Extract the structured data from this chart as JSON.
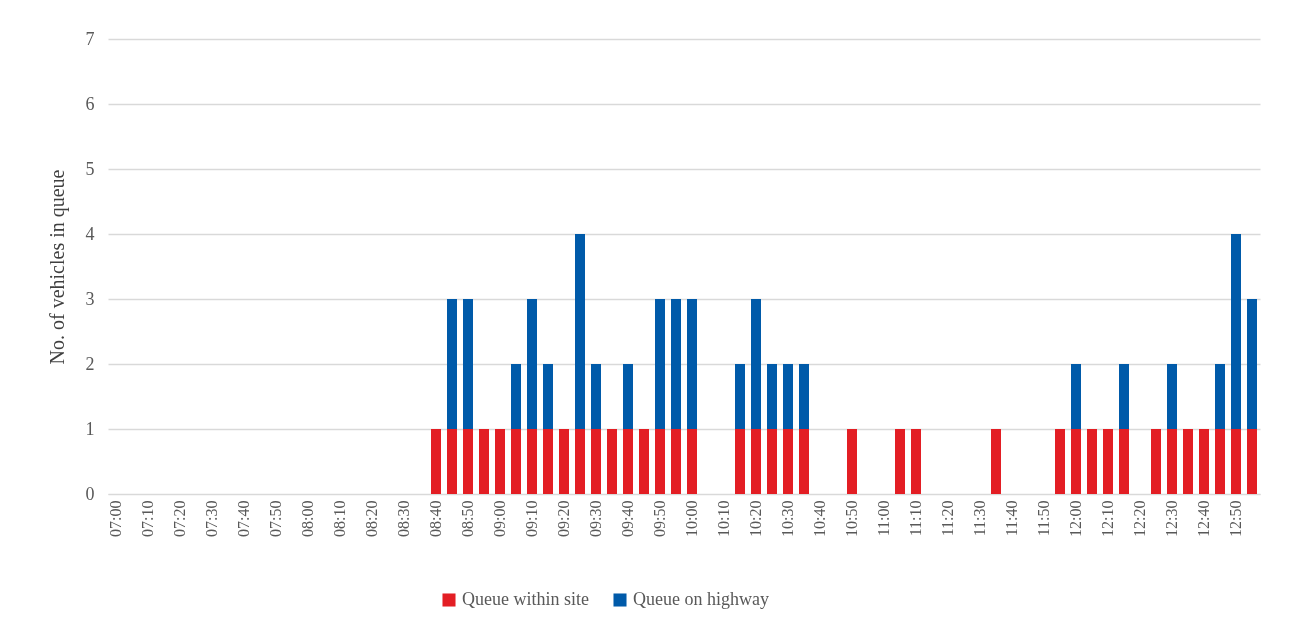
{
  "chart_data": {
    "type": "bar",
    "ylabel": "No. of vehicles in queue",
    "categories": [
      "07:00",
      null,
      "07:10",
      null,
      "07:20",
      null,
      "07:30",
      null,
      "07:40",
      null,
      "07:50",
      null,
      "08:00",
      null,
      "08:10",
      null,
      "08:20",
      null,
      "08:30",
      null,
      "08:40",
      null,
      "08:50",
      null,
      "09:00",
      null,
      "09:10",
      null,
      "09:20",
      null,
      "09:30",
      null,
      "09:40",
      null,
      "09:50",
      null,
      "10:00",
      null,
      "10:10",
      null,
      "10:20",
      null,
      "10:30",
      null,
      "10:40",
      null,
      "10:50",
      null,
      "11:00",
      null,
      "11:10",
      null,
      "11:20",
      null,
      "11:30",
      null,
      "11:40",
      null,
      "11:50",
      null,
      "12:00",
      null,
      "12:10",
      null,
      "12:20",
      null,
      "12:30",
      null,
      "12:40",
      null,
      "12:50",
      null
    ],
    "series": [
      {
        "name": "Queue within site",
        "color": "#e31e24",
        "values": [
          0,
          0,
          0,
          0,
          0,
          0,
          0,
          0,
          0,
          0,
          0,
          0,
          0,
          0,
          0,
          0,
          0,
          0,
          0,
          0,
          1,
          1,
          1,
          1,
          1,
          1,
          1,
          1,
          1,
          1,
          1,
          1,
          1,
          1,
          1,
          1,
          1,
          0,
          0,
          1,
          1,
          1,
          1,
          1,
          0,
          0,
          1,
          0,
          0,
          1,
          1,
          0,
          0,
          0,
          0,
          1,
          0,
          0,
          0,
          1,
          1,
          1,
          1,
          1,
          0,
          1,
          1,
          1,
          1,
          1,
          1,
          1
        ]
      },
      {
        "name": "Queue on highway",
        "color": "#005aa9",
        "values": [
          0,
          0,
          0,
          0,
          0,
          0,
          0,
          0,
          0,
          0,
          0,
          0,
          0,
          0,
          0,
          0,
          0,
          0,
          0,
          0,
          0,
          2,
          2,
          0,
          0,
          1,
          2,
          1,
          0,
          3,
          1,
          0,
          1,
          0,
          2,
          2,
          2,
          0,
          0,
          1,
          2,
          1,
          1,
          1,
          0,
          0,
          0,
          0,
          0,
          0,
          0,
          0,
          0,
          0,
          0,
          0,
          0,
          0,
          0,
          0,
          1,
          0,
          0,
          1,
          0,
          0,
          1,
          0,
          0,
          1,
          3,
          2
        ]
      }
    ],
    "stacked": true,
    "ylim": [
      0,
      7
    ],
    "yticks": [
      0,
      1,
      2,
      3,
      4,
      5,
      6,
      7
    ],
    "grid": "y",
    "legend": "bottom"
  }
}
